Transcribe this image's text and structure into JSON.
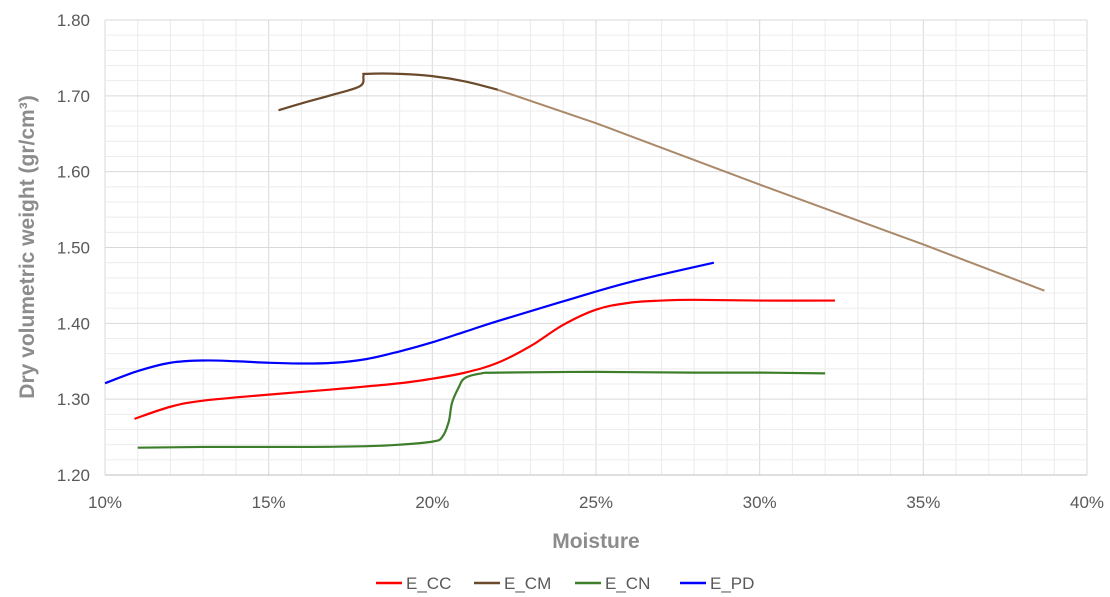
{
  "chart_data": {
    "type": "line",
    "title": "",
    "xlabel": "Moisture",
    "ylabel": "Dry volumetric weight (gr/cm³)",
    "xlim": [
      0.1,
      0.4
    ],
    "ylim": [
      1.2,
      1.8
    ],
    "x_ticks": [
      0.1,
      0.15,
      0.2,
      0.25,
      0.3,
      0.35,
      0.4
    ],
    "x_tick_labels": [
      "10%",
      "15%",
      "20%",
      "25%",
      "30%",
      "35%",
      "40%"
    ],
    "y_ticks": [
      1.2,
      1.3,
      1.4,
      1.5,
      1.6,
      1.7,
      1.8
    ],
    "y_tick_labels": [
      "1.20",
      "1.30",
      "1.40",
      "1.50",
      "1.60",
      "1.70",
      "1.80"
    ],
    "grid": true,
    "legend_position": "bottom",
    "series": [
      {
        "name": "E_CC",
        "color": "#ff0000",
        "x": [
          0.109,
          0.12,
          0.13,
          0.15,
          0.17,
          0.19,
          0.2,
          0.21,
          0.22,
          0.23,
          0.24,
          0.25,
          0.26,
          0.27,
          0.28,
          0.3,
          0.323
        ],
        "y": [
          1.274,
          1.29,
          1.298,
          1.306,
          1.313,
          1.321,
          1.327,
          1.335,
          1.348,
          1.37,
          1.398,
          1.418,
          1.427,
          1.43,
          1.431,
          1.43,
          1.43
        ]
      },
      {
        "name": "E_CM",
        "color": "#6b4a2b",
        "x": [
          0.153,
          0.16,
          0.17,
          0.178,
          0.179,
          0.18,
          0.19,
          0.2,
          0.21,
          0.22,
          0.25,
          0.3,
          0.35,
          0.387
        ],
        "y": [
          1.681,
          1.69,
          1.702,
          1.713,
          1.727,
          1.729,
          1.729,
          1.726,
          1.719,
          1.708,
          1.664,
          1.583,
          1.504,
          1.443
        ]
      },
      {
        "name": "E_CN",
        "color": "#3d7e2b",
        "x": [
          0.11,
          0.13,
          0.16,
          0.18,
          0.19,
          0.2,
          0.203,
          0.205,
          0.206,
          0.208,
          0.21,
          0.215,
          0.22,
          0.25,
          0.28,
          0.3,
          0.32
        ],
        "y": [
          1.236,
          1.237,
          1.237,
          1.238,
          1.24,
          1.244,
          1.25,
          1.27,
          1.295,
          1.315,
          1.328,
          1.334,
          1.335,
          1.336,
          1.335,
          1.335,
          1.334
        ]
      },
      {
        "name": "E_PD",
        "color": "#0000ff",
        "x": [
          0.1,
          0.11,
          0.12,
          0.13,
          0.14,
          0.15,
          0.16,
          0.17,
          0.18,
          0.19,
          0.2,
          0.21,
          0.22,
          0.24,
          0.26,
          0.286
        ],
        "y": [
          1.321,
          1.337,
          1.348,
          1.351,
          1.35,
          1.348,
          1.347,
          1.348,
          1.353,
          1.363,
          1.375,
          1.389,
          1.403,
          1.429,
          1.454,
          1.48
        ]
      }
    ]
  }
}
